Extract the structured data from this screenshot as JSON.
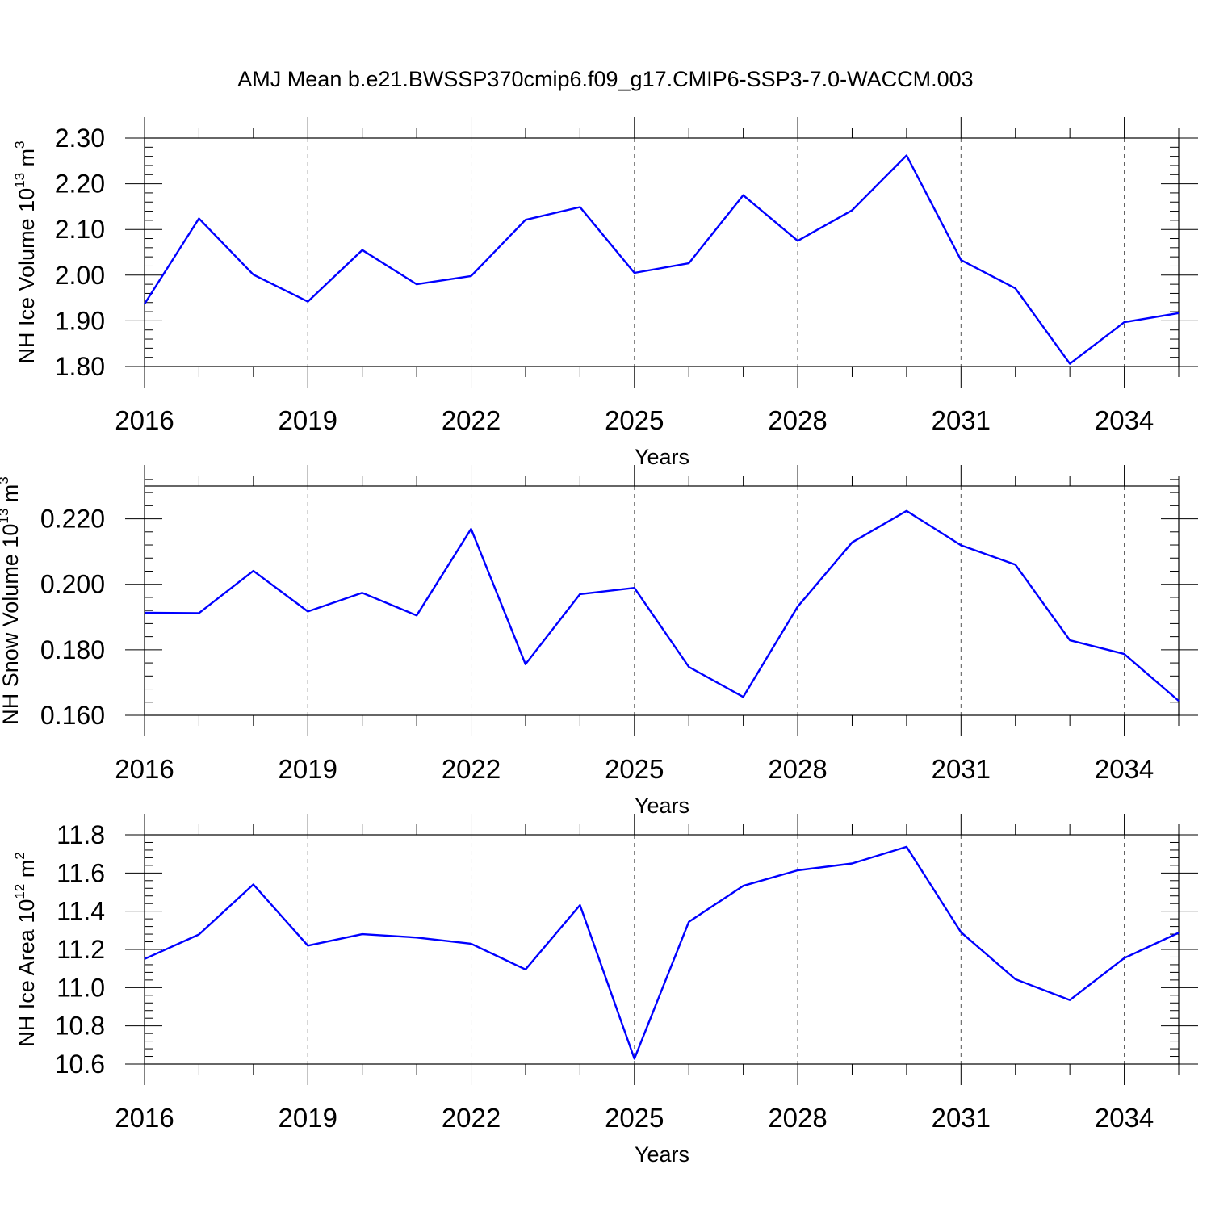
{
  "figure": {
    "title": "AMJ Mean b.e21.BWSSP370cmip6.f09_g17.CMIP6-SSP3-7.0-WACCM.003"
  },
  "style": {
    "line_color": "#0000ff",
    "axis_color": "#000000",
    "grid_color": "#555555"
  },
  "chart_data": [
    {
      "type": "line",
      "id": "ice-volume",
      "ylabel_main": "NH Ice Volume 10",
      "ylabel_exp": "13",
      "ylabel_unit": " m",
      "ylabel_unit_exp": "3",
      "xlabel": "Years",
      "xlim": [
        2016,
        2035
      ],
      "ylim": [
        1.8,
        2.3
      ],
      "yticks": [
        "1.80",
        "1.90",
        "2.00",
        "2.10",
        "2.20",
        "2.30"
      ],
      "xticks": [
        "2016",
        "2019",
        "2022",
        "2025",
        "2028",
        "2031",
        "2034"
      ],
      "x": [
        2016,
        2017,
        2018,
        2019,
        2020,
        2021,
        2022,
        2023,
        2024,
        2025,
        2026,
        2027,
        2028,
        2029,
        2030,
        2031,
        2032,
        2033,
        2034,
        2035
      ],
      "values": [
        1.937,
        2.124,
        2.001,
        1.942,
        2.055,
        1.98,
        1.998,
        2.121,
        2.149,
        2.005,
        2.026,
        2.175,
        2.075,
        2.142,
        2.262,
        2.033,
        1.971,
        1.806,
        1.897,
        1.917
      ]
    },
    {
      "type": "line",
      "id": "snow-volume",
      "ylabel_main": "NH Snow Volume 10",
      "ylabel_exp": "13",
      "ylabel_unit": " m",
      "ylabel_unit_exp": "3",
      "xlabel": "Years",
      "xlim": [
        2016,
        2035
      ],
      "ylim": [
        0.16,
        0.23
      ],
      "yticks": [
        "0.160",
        "0.180",
        "0.200",
        "0.220"
      ],
      "xticks": [
        "2016",
        "2019",
        "2022",
        "2025",
        "2028",
        "2031",
        "2034"
      ],
      "x": [
        2016,
        2017,
        2018,
        2019,
        2020,
        2021,
        2022,
        2023,
        2024,
        2025,
        2026,
        2027,
        2028,
        2029,
        2030,
        2031,
        2032,
        2033,
        2034,
        2035
      ],
      "values": [
        0.1913,
        0.1912,
        0.2041,
        0.1917,
        0.1974,
        0.1905,
        0.2169,
        0.1756,
        0.197,
        0.1989,
        0.1748,
        0.1656,
        0.1932,
        0.2128,
        0.2224,
        0.2119,
        0.206,
        0.1829,
        0.1787,
        0.1644
      ]
    },
    {
      "type": "line",
      "id": "ice-area",
      "ylabel_main": "NH Ice Area 10",
      "ylabel_exp": "12",
      "ylabel_unit": " m",
      "ylabel_unit_exp": "2",
      "xlabel": "Years",
      "xlim": [
        2016,
        2035
      ],
      "ylim": [
        10.6,
        11.8
      ],
      "yticks": [
        "10.6",
        "10.8",
        "11.0",
        "11.2",
        "11.4",
        "11.6",
        "11.8"
      ],
      "xticks": [
        "2016",
        "2019",
        "2022",
        "2025",
        "2028",
        "2031",
        "2034"
      ],
      "x": [
        2016,
        2017,
        2018,
        2019,
        2020,
        2021,
        2022,
        2023,
        2024,
        2025,
        2026,
        2027,
        2028,
        2029,
        2030,
        2031,
        2032,
        2033,
        2034,
        2035
      ],
      "values": [
        11.15,
        11.278,
        11.54,
        11.22,
        11.28,
        11.262,
        11.23,
        11.095,
        11.432,
        10.628,
        11.344,
        11.533,
        11.614,
        11.65,
        11.737,
        11.29,
        11.044,
        10.935,
        11.155,
        11.287
      ]
    }
  ]
}
